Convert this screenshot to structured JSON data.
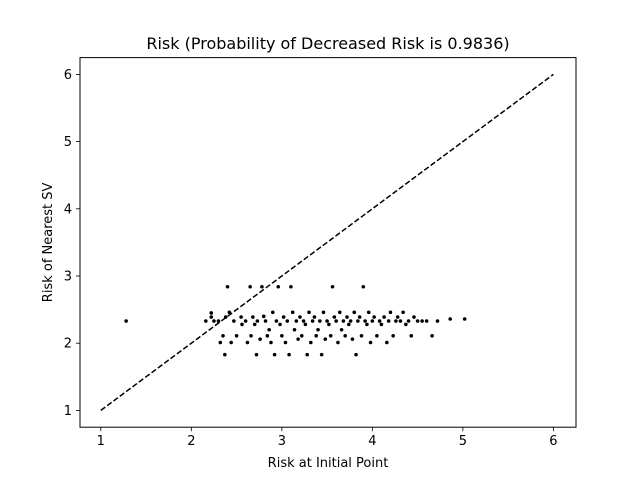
{
  "chart_data": {
    "type": "scatter",
    "title": "Risk (Probability of Decreased Risk is 0.9836)",
    "xlabel": "Risk at Initial Point",
    "ylabel": "Risk of Nearest SV",
    "xlim": [
      0.77,
      6.25
    ],
    "ylim": [
      0.75,
      6.25
    ],
    "xticks": [
      1,
      2,
      3,
      4,
      5,
      6
    ],
    "yticks": [
      1,
      2,
      3,
      4,
      5,
      6
    ],
    "grid": false,
    "legend": "none",
    "marker_color": "#000000",
    "reference_line": {
      "style": "dashed",
      "color": "#000000",
      "x": [
        1,
        6
      ],
      "y": [
        1,
        6
      ]
    },
    "points": [
      {
        "x": 1.28,
        "y": 2.33
      },
      {
        "x": 2.16,
        "y": 2.33
      },
      {
        "x": 2.22,
        "y": 2.39
      },
      {
        "x": 2.22,
        "y": 2.45
      },
      {
        "x": 2.25,
        "y": 2.33
      },
      {
        "x": 2.3,
        "y": 2.33
      },
      {
        "x": 2.32,
        "y": 2.01
      },
      {
        "x": 2.35,
        "y": 2.11
      },
      {
        "x": 2.37,
        "y": 1.83
      },
      {
        "x": 2.38,
        "y": 2.39
      },
      {
        "x": 2.4,
        "y": 2.84
      },
      {
        "x": 2.42,
        "y": 2.46
      },
      {
        "x": 2.44,
        "y": 2.01
      },
      {
        "x": 2.47,
        "y": 2.33
      },
      {
        "x": 2.5,
        "y": 2.11
      },
      {
        "x": 2.55,
        "y": 2.39
      },
      {
        "x": 2.56,
        "y": 2.28
      },
      {
        "x": 2.6,
        "y": 2.33
      },
      {
        "x": 2.62,
        "y": 2.01
      },
      {
        "x": 2.65,
        "y": 2.84
      },
      {
        "x": 2.66,
        "y": 2.11
      },
      {
        "x": 2.68,
        "y": 2.39
      },
      {
        "x": 2.7,
        "y": 2.28
      },
      {
        "x": 2.72,
        "y": 1.83
      },
      {
        "x": 2.73,
        "y": 2.33
      },
      {
        "x": 2.76,
        "y": 2.06
      },
      {
        "x": 2.78,
        "y": 2.84
      },
      {
        "x": 2.8,
        "y": 2.4
      },
      {
        "x": 2.82,
        "y": 2.33
      },
      {
        "x": 2.84,
        "y": 2.11
      },
      {
        "x": 2.86,
        "y": 2.2
      },
      {
        "x": 2.88,
        "y": 2.01
      },
      {
        "x": 2.9,
        "y": 2.46
      },
      {
        "x": 2.92,
        "y": 1.83
      },
      {
        "x": 2.94,
        "y": 2.33
      },
      {
        "x": 2.96,
        "y": 2.84
      },
      {
        "x": 2.98,
        "y": 2.28
      },
      {
        "x": 3.0,
        "y": 2.11
      },
      {
        "x": 3.02,
        "y": 2.39
      },
      {
        "x": 3.04,
        "y": 2.01
      },
      {
        "x": 3.06,
        "y": 2.33
      },
      {
        "x": 3.08,
        "y": 1.83
      },
      {
        "x": 3.1,
        "y": 2.84
      },
      {
        "x": 3.12,
        "y": 2.46
      },
      {
        "x": 3.14,
        "y": 2.2
      },
      {
        "x": 3.16,
        "y": 2.33
      },
      {
        "x": 3.18,
        "y": 2.06
      },
      {
        "x": 3.2,
        "y": 2.39
      },
      {
        "x": 3.22,
        "y": 2.11
      },
      {
        "x": 3.24,
        "y": 2.33
      },
      {
        "x": 3.26,
        "y": 2.28
      },
      {
        "x": 3.28,
        "y": 1.83
      },
      {
        "x": 3.3,
        "y": 2.46
      },
      {
        "x": 3.32,
        "y": 2.01
      },
      {
        "x": 3.34,
        "y": 2.33
      },
      {
        "x": 3.36,
        "y": 2.39
      },
      {
        "x": 3.38,
        "y": 2.11
      },
      {
        "x": 3.4,
        "y": 2.2
      },
      {
        "x": 3.42,
        "y": 2.33
      },
      {
        "x": 3.44,
        "y": 1.83
      },
      {
        "x": 3.46,
        "y": 2.46
      },
      {
        "x": 3.48,
        "y": 2.06
      },
      {
        "x": 3.5,
        "y": 2.33
      },
      {
        "x": 3.52,
        "y": 2.28
      },
      {
        "x": 3.54,
        "y": 2.11
      },
      {
        "x": 3.56,
        "y": 2.84
      },
      {
        "x": 3.58,
        "y": 2.39
      },
      {
        "x": 3.6,
        "y": 2.33
      },
      {
        "x": 3.62,
        "y": 2.01
      },
      {
        "x": 3.64,
        "y": 2.46
      },
      {
        "x": 3.66,
        "y": 2.2
      },
      {
        "x": 3.68,
        "y": 2.33
      },
      {
        "x": 3.7,
        "y": 2.11
      },
      {
        "x": 3.72,
        "y": 2.39
      },
      {
        "x": 3.74,
        "y": 2.28
      },
      {
        "x": 3.76,
        "y": 2.33
      },
      {
        "x": 3.78,
        "y": 2.06
      },
      {
        "x": 3.8,
        "y": 2.46
      },
      {
        "x": 3.82,
        "y": 1.83
      },
      {
        "x": 3.84,
        "y": 2.33
      },
      {
        "x": 3.86,
        "y": 2.39
      },
      {
        "x": 3.88,
        "y": 2.11
      },
      {
        "x": 3.9,
        "y": 2.84
      },
      {
        "x": 3.92,
        "y": 2.33
      },
      {
        "x": 3.94,
        "y": 2.28
      },
      {
        "x": 3.96,
        "y": 2.46
      },
      {
        "x": 3.98,
        "y": 2.01
      },
      {
        "x": 4.0,
        "y": 2.33
      },
      {
        "x": 4.02,
        "y": 2.39
      },
      {
        "x": 4.05,
        "y": 2.11
      },
      {
        "x": 4.08,
        "y": 2.33
      },
      {
        "x": 4.1,
        "y": 2.28
      },
      {
        "x": 4.13,
        "y": 2.39
      },
      {
        "x": 4.16,
        "y": 2.01
      },
      {
        "x": 4.18,
        "y": 2.33
      },
      {
        "x": 4.2,
        "y": 2.46
      },
      {
        "x": 4.23,
        "y": 2.11
      },
      {
        "x": 4.26,
        "y": 2.33
      },
      {
        "x": 4.28,
        "y": 2.39
      },
      {
        "x": 4.31,
        "y": 2.33
      },
      {
        "x": 4.34,
        "y": 2.46
      },
      {
        "x": 4.37,
        "y": 2.28
      },
      {
        "x": 4.4,
        "y": 2.33
      },
      {
        "x": 4.43,
        "y": 2.11
      },
      {
        "x": 4.46,
        "y": 2.39
      },
      {
        "x": 4.5,
        "y": 2.33
      },
      {
        "x": 4.55,
        "y": 2.33
      },
      {
        "x": 4.6,
        "y": 2.33
      },
      {
        "x": 4.66,
        "y": 2.11
      },
      {
        "x": 4.72,
        "y": 2.33
      },
      {
        "x": 4.86,
        "y": 2.36
      },
      {
        "x": 5.02,
        "y": 2.36
      }
    ]
  }
}
